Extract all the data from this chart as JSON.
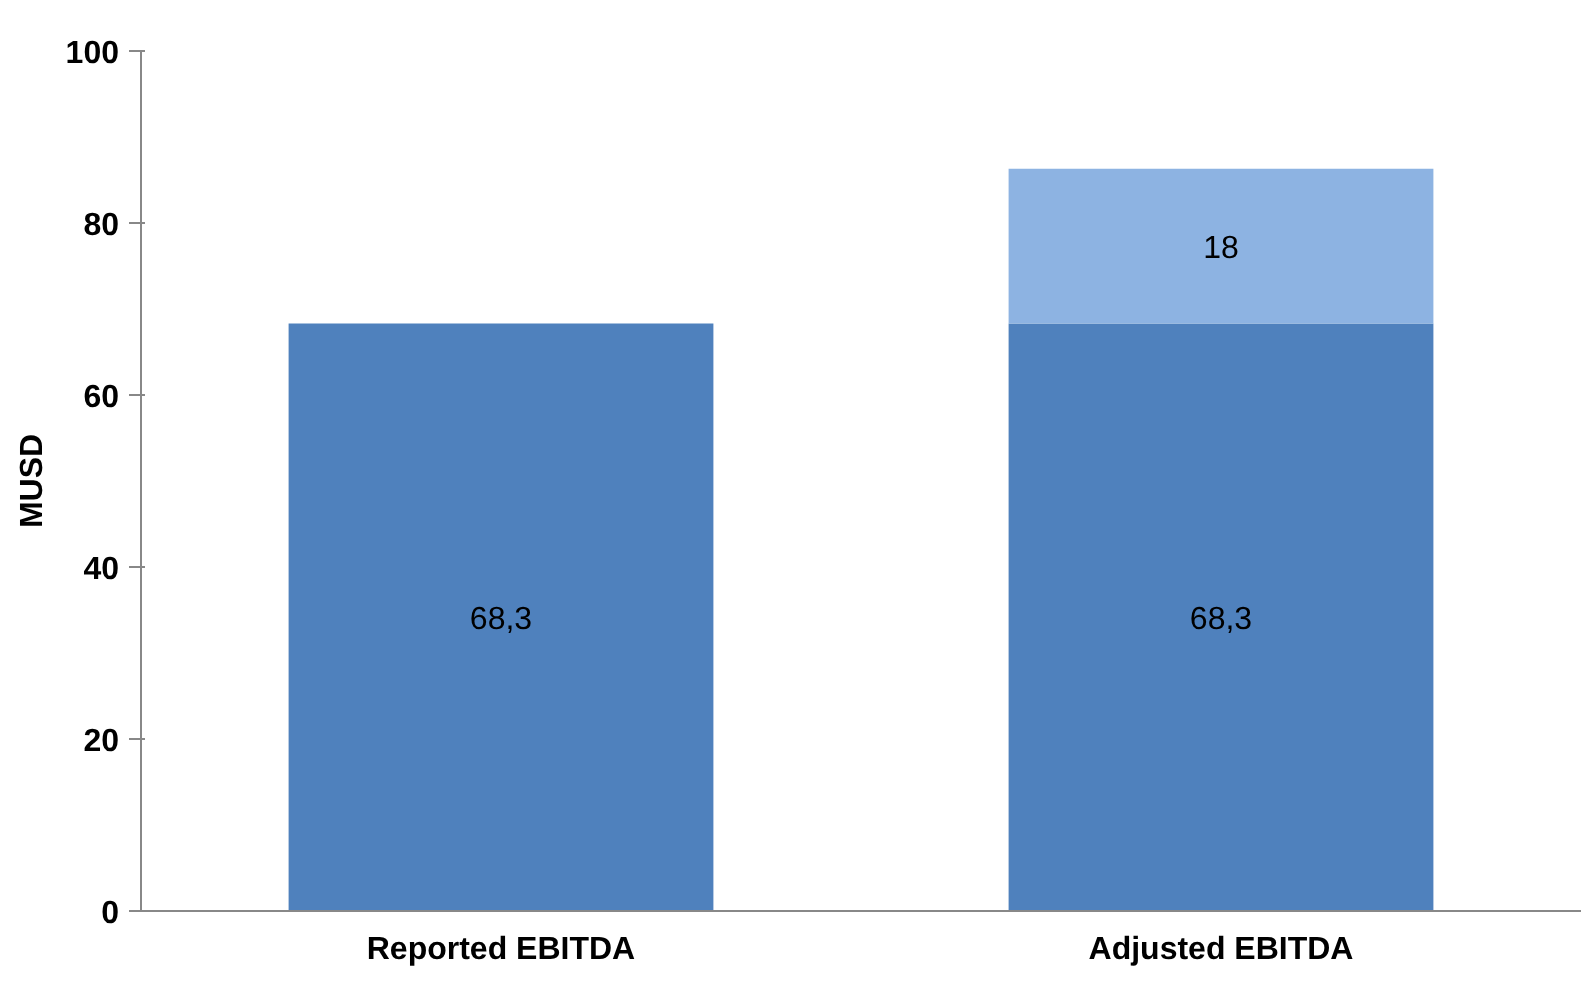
{
  "chart_data": {
    "type": "bar",
    "stacked": true,
    "ylabel": "MUSD",
    "categories": [
      "Reported EBITDA",
      "Adjusted EBITDA"
    ],
    "series": [
      {
        "color": "#4f81bd",
        "values": [
          68.3,
          68.3
        ],
        "value_labels": [
          "68,3",
          "68,3"
        ]
      },
      {
        "color": "#8db3e2",
        "values": [
          null,
          18
        ],
        "value_labels": [
          null,
          "18"
        ]
      }
    ],
    "ylim": [
      0,
      100
    ],
    "yticks": [
      0,
      20,
      40,
      60,
      80,
      100
    ],
    "grid": false
  }
}
